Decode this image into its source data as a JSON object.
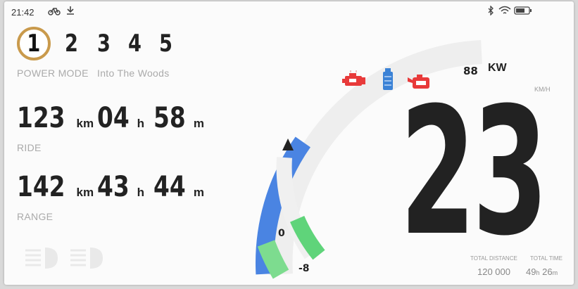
{
  "status_bar": {
    "time": "21:42",
    "left_icons": [
      "bike-icon",
      "download-icon"
    ],
    "right_icons": [
      "bluetooth-icon",
      "wifi-icon",
      "battery-icon"
    ]
  },
  "power_mode": {
    "modes": [
      "1",
      "2",
      "3",
      "4",
      "5"
    ],
    "active": "1",
    "label": "POWER MODE",
    "profile": "Into The Woods"
  },
  "ride": {
    "distance": "123",
    "distance_unit": "km",
    "hours": "04",
    "hours_unit": "h",
    "minutes": "58",
    "minutes_unit": "m",
    "label": "RIDE"
  },
  "range": {
    "distance": "142",
    "distance_unit": "km",
    "hours": "43",
    "hours_unit": "h",
    "minutes": "44",
    "minutes_unit": "m",
    "label": "RANGE"
  },
  "power": {
    "value": "88",
    "unit": "KW",
    "outer_arc_fraction": 0.4
  },
  "regen": {
    "max_label": "0",
    "min_label": "-8",
    "fill_fraction": 0.6
  },
  "speed": {
    "value": "23",
    "unit": "KM/H"
  },
  "warning_icons": [
    "engine-icon",
    "coolant-icon",
    "oil-icon"
  ],
  "totals": {
    "distance_label": "TOTAL DISTANCE",
    "distance_value": "120 000",
    "time_label": "TOTAL TIME",
    "time_hours": "49",
    "time_hours_unit": "h",
    "time_minutes": "26",
    "time_minutes_unit": "m"
  },
  "colors": {
    "accent_gold": "#c99a4c",
    "power_blue": "#4a84e2",
    "regen_green": "#5fd47a",
    "warning_red": "#e83a3a",
    "coolant_blue": "#3b82d6"
  }
}
